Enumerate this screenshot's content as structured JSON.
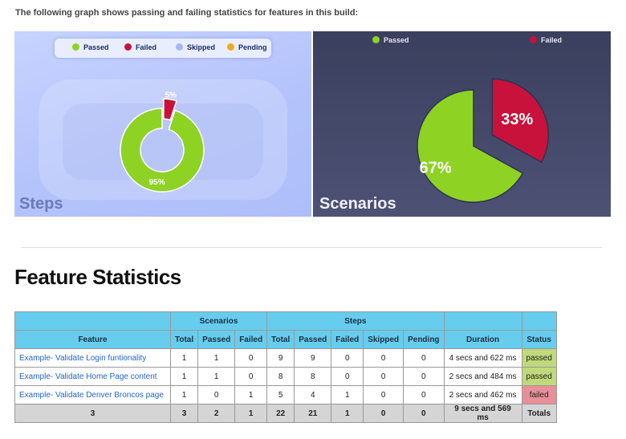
{
  "intro_text": "The following graph shows passing and failing statistics for features in this build:",
  "steps_chart": {
    "label": "Steps",
    "legend": [
      "Passed",
      "Failed",
      "Skipped",
      "Pending"
    ],
    "legend_colors": [
      "#8ed224",
      "#c8123b",
      "#a8b6f6",
      "#f5a623"
    ],
    "slices": [
      {
        "name": "Passed",
        "percent_label": "95%",
        "value": 95,
        "color": "#8ed224"
      },
      {
        "name": "Failed",
        "percent_label": "5%",
        "value": 5,
        "color": "#c8123b"
      }
    ]
  },
  "scenarios_chart": {
    "label": "Scenarios",
    "legend": [
      "Passed",
      "Failed"
    ],
    "legend_colors": [
      "#8ed224",
      "#c8123b"
    ],
    "slices": [
      {
        "name": "Passed",
        "percent_label": "67%",
        "value": 67,
        "color": "#8ed224"
      },
      {
        "name": "Failed",
        "percent_label": "33%",
        "value": 33,
        "color": "#c8123b"
      }
    ]
  },
  "section_title": "Feature Statistics",
  "table": {
    "group_headers": {
      "scenarios": "Scenarios",
      "steps": "Steps"
    },
    "columns": [
      "Feature",
      "Total",
      "Passed",
      "Failed",
      "Total",
      "Passed",
      "Failed",
      "Skipped",
      "Pending",
      "Duration",
      "Status"
    ],
    "rows": [
      [
        "Example- Validate Login funtionality",
        "1",
        "1",
        "0",
        "9",
        "9",
        "0",
        "0",
        "0",
        "4 secs and 622 ms",
        "passed"
      ],
      [
        "Example- Validate Home Page content",
        "1",
        "1",
        "0",
        "8",
        "8",
        "0",
        "0",
        "0",
        "2 secs and 484 ms",
        "passed"
      ],
      [
        "Example- Validate Denver Broncos page",
        "1",
        "0",
        "1",
        "5",
        "4",
        "1",
        "0",
        "0",
        "2 secs and 462 ms",
        "failed"
      ]
    ],
    "totals": [
      "3",
      "3",
      "2",
      "1",
      "22",
      "21",
      "1",
      "0",
      "0",
      "9 secs and 569 ms",
      "Totals"
    ]
  }
}
